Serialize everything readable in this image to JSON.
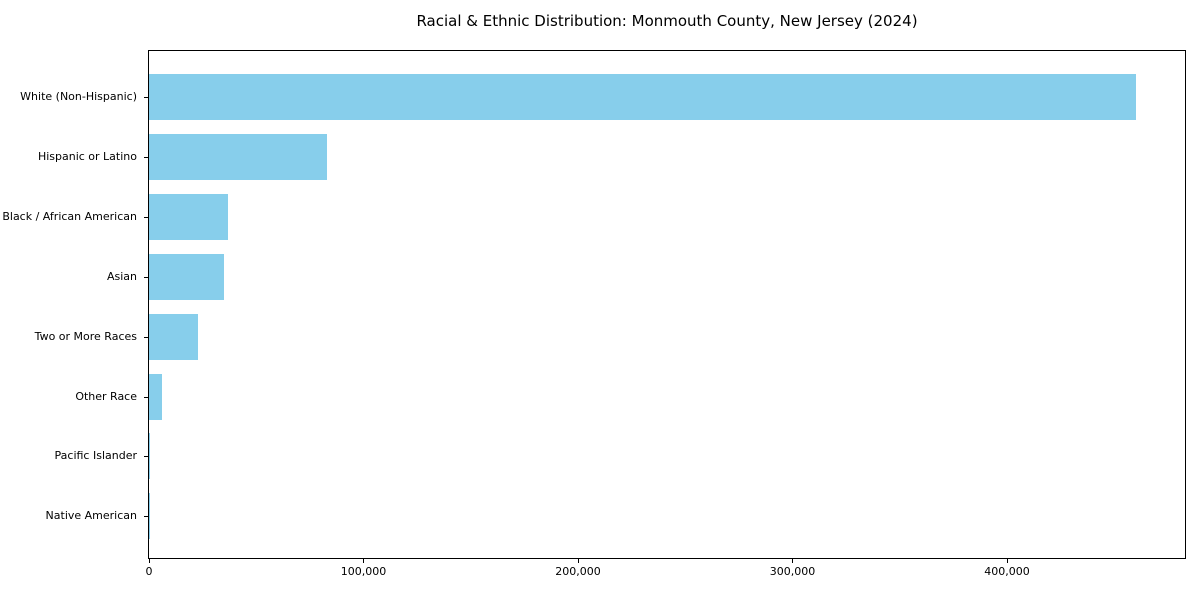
{
  "chart_data": {
    "type": "bar",
    "orientation": "horizontal",
    "title": "Racial & Ethnic Distribution: Monmouth County, New Jersey (2024)",
    "categories": [
      "White (Non-Hispanic)",
      "Hispanic or Latino",
      "Black / African American",
      "Asian",
      "Two or More Races",
      "Other Race",
      "Pacific Islander",
      "Native American"
    ],
    "values": [
      460000,
      83000,
      37000,
      35000,
      23000,
      6000,
      300,
      200
    ],
    "xlabel": "",
    "ylabel": "",
    "xlim": [
      0,
      483000
    ],
    "x_ticks": [
      0,
      100000,
      200000,
      300000,
      400000
    ],
    "x_tick_labels": [
      "0",
      "100,000",
      "200,000",
      "300,000",
      "400,000"
    ],
    "bar_color": "#87CEEB",
    "axis_color": "#000000",
    "background": "#ffffff",
    "grid": false,
    "legend": null
  }
}
